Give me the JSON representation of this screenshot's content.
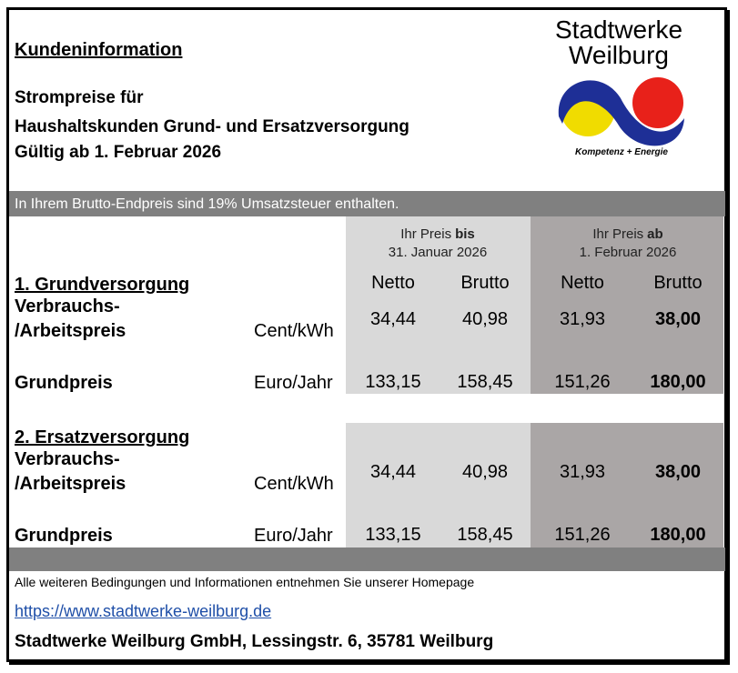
{
  "header": {
    "title": "Kundeninformation",
    "lines": [
      "Strompreise für",
      "Haushaltskunden Grund- und Ersatzversorgung",
      "Gültig ab 1. Februar 2026"
    ],
    "logo": {
      "name_line1": "Stadtwerke",
      "name_line2": "Weilburg",
      "tagline": "Kompetenz + Energie"
    }
  },
  "notice": "In Ihrem Brutto-Endpreis sind 19% Umsatzsteuer enthalten.",
  "table": {
    "periods": [
      {
        "prefix": "Ihr Preis",
        "emphasis": "bis",
        "date": "31. Januar 2026"
      },
      {
        "prefix": "Ihr Preis",
        "emphasis": "ab",
        "date": "1. Februar 2026"
      }
    ],
    "columns": [
      "Netto",
      "Brutto",
      "Netto",
      "Brutto"
    ],
    "sections": [
      {
        "title": "1. Grundversorgung",
        "rows": [
          {
            "label": [
              "Verbrauchs-",
              "/Arbeitspreis"
            ],
            "unit": "Cent/kWh",
            "values": [
              "34,44",
              "40,98",
              "31,93",
              "38,00"
            ]
          },
          {
            "label": [
              "Grundpreis"
            ],
            "unit": "Euro/Jahr",
            "values": [
              "133,15",
              "158,45",
              "151,26",
              "180,00"
            ]
          }
        ]
      },
      {
        "title": "2. Ersatzversorgung",
        "rows": [
          {
            "label": [
              "Verbrauchs-",
              "/Arbeitspreis"
            ],
            "unit": "Cent/kWh",
            "values": [
              "34,44",
              "40,98",
              "31,93",
              "38,00"
            ]
          },
          {
            "label": [
              "Grundpreis"
            ],
            "unit": "Euro/Jahr",
            "values": [
              "133,15",
              "158,45",
              "151,26",
              "180,00"
            ]
          }
        ]
      }
    ]
  },
  "footer": {
    "note": "Alle weiteren Bedingungen und Informationen entnehmen Sie unserer Homepage",
    "link": "https://www.stadtwerke-weilburg.de",
    "company": "Stadtwerke Weilburg GmbH, Lessingstr. 6, 35781 Weilburg"
  }
}
